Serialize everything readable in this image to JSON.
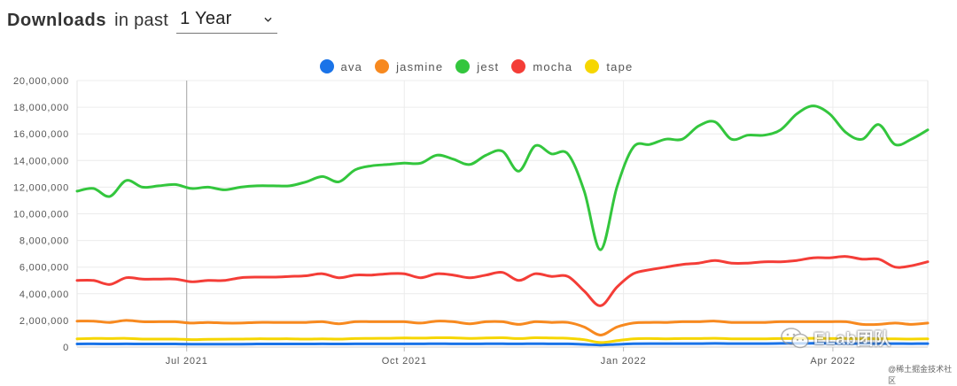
{
  "header": {
    "title_bold": "Downloads",
    "title_light": "in past",
    "range_select_value": "1 Year"
  },
  "watermark": {
    "text": "ELab团队",
    "site": "@稀土掘金技术社区"
  },
  "chart_data": {
    "type": "line",
    "title": "",
    "xlabel": "",
    "ylabel": "",
    "ylim": [
      0,
      20000000
    ],
    "xlim": [
      0,
      52
    ],
    "x": [
      0,
      1,
      2,
      3,
      4,
      5,
      6,
      7,
      8,
      9,
      10,
      11,
      12,
      13,
      14,
      15,
      16,
      17,
      18,
      19,
      20,
      21,
      22,
      23,
      24,
      25,
      26,
      27,
      28,
      29,
      30,
      31,
      32,
      33,
      34,
      35,
      36,
      37,
      38,
      39,
      40,
      41,
      42,
      43,
      44,
      45,
      46,
      47,
      48,
      49,
      50,
      51,
      52
    ],
    "x_ticks": [
      {
        "x": 6.7,
        "label": "Jul 2021"
      },
      {
        "x": 20.0,
        "label": "Oct 2021"
      },
      {
        "x": 33.4,
        "label": "Jan 2022"
      },
      {
        "x": 46.2,
        "label": "Apr 2022"
      }
    ],
    "y_ticks": [
      {
        "value": 0,
        "label": "0"
      },
      {
        "value": 2000000,
        "label": "2,000,000"
      },
      {
        "value": 4000000,
        "label": "4,000,000"
      },
      {
        "value": 6000000,
        "label": "6,000,000"
      },
      {
        "value": 8000000,
        "label": "8,000,000"
      },
      {
        "value": 10000000,
        "label": "10,000,000"
      },
      {
        "value": 12000000,
        "label": "12,000,000"
      },
      {
        "value": 14000000,
        "label": "14,000,000"
      },
      {
        "value": 16000000,
        "label": "16,000,000"
      },
      {
        "value": 18000000,
        "label": "18,000,000"
      },
      {
        "value": 20000000,
        "label": "20,000,000"
      }
    ],
    "grid": true,
    "legend_position": "top-center",
    "series": [
      {
        "name": "jest",
        "color": "#33c63d",
        "values": [
          11700000,
          11900000,
          11300000,
          12500000,
          12000000,
          12100000,
          12200000,
          11900000,
          12000000,
          11800000,
          12000000,
          12100000,
          12100000,
          12100000,
          12400000,
          12800000,
          12400000,
          13300000,
          13600000,
          13700000,
          13800000,
          13800000,
          14400000,
          14100000,
          13700000,
          14400000,
          14700000,
          13200000,
          15100000,
          14500000,
          14500000,
          11700000,
          7300000,
          12000000,
          15000000,
          15200000,
          15600000,
          15600000,
          16600000,
          16900000,
          15600000,
          15900000,
          15900000,
          16300000,
          17500000,
          18100000,
          17500000,
          16100000,
          15600000,
          16700000,
          15200000,
          15600000,
          16300000
        ]
      },
      {
        "name": "mocha",
        "color": "#f43d37",
        "values": [
          5000000,
          5000000,
          4700000,
          5200000,
          5100000,
          5100000,
          5100000,
          4900000,
          5000000,
          5000000,
          5200000,
          5250000,
          5250000,
          5300000,
          5350000,
          5500000,
          5200000,
          5400000,
          5400000,
          5500000,
          5500000,
          5200000,
          5500000,
          5400000,
          5200000,
          5400000,
          5600000,
          5000000,
          5500000,
          5300000,
          5300000,
          4200000,
          3100000,
          4500000,
          5500000,
          5800000,
          6000000,
          6200000,
          6300000,
          6500000,
          6300000,
          6300000,
          6400000,
          6400000,
          6500000,
          6700000,
          6700000,
          6800000,
          6600000,
          6600000,
          6000000,
          6100000,
          6400000
        ]
      },
      {
        "name": "jasmine",
        "color": "#f7891f",
        "values": [
          1950000,
          1950000,
          1850000,
          2000000,
          1900000,
          1900000,
          1900000,
          1800000,
          1850000,
          1800000,
          1800000,
          1850000,
          1850000,
          1850000,
          1850000,
          1900000,
          1750000,
          1900000,
          1900000,
          1900000,
          1900000,
          1800000,
          1950000,
          1900000,
          1750000,
          1900000,
          1900000,
          1700000,
          1900000,
          1850000,
          1850000,
          1500000,
          900000,
          1500000,
          1800000,
          1850000,
          1850000,
          1900000,
          1900000,
          1950000,
          1850000,
          1850000,
          1850000,
          1900000,
          1900000,
          1900000,
          1900000,
          1900000,
          1700000,
          1700000,
          1800000,
          1700000,
          1800000
        ]
      },
      {
        "name": "tape",
        "color": "#f6d600",
        "values": [
          620000,
          650000,
          640000,
          650000,
          600000,
          600000,
          600000,
          560000,
          580000,
          590000,
          600000,
          620000,
          610000,
          620000,
          600000,
          620000,
          600000,
          640000,
          650000,
          660000,
          680000,
          670000,
          700000,
          690000,
          650000,
          680000,
          700000,
          640000,
          700000,
          680000,
          660000,
          550000,
          340000,
          480000,
          620000,
          640000,
          620000,
          640000,
          640000,
          660000,
          620000,
          620000,
          620000,
          640000,
          640000,
          660000,
          640000,
          640000,
          620000,
          620000,
          610000,
          600000,
          620000
        ]
      },
      {
        "name": "ava",
        "color": "#1a73e8",
        "values": [
          230000,
          240000,
          230000,
          240000,
          230000,
          230000,
          230000,
          220000,
          220000,
          220000,
          220000,
          230000,
          230000,
          230000,
          230000,
          240000,
          230000,
          240000,
          240000,
          240000,
          240000,
          240000,
          250000,
          240000,
          240000,
          250000,
          250000,
          240000,
          250000,
          240000,
          240000,
          200000,
          150000,
          200000,
          250000,
          260000,
          260000,
          260000,
          260000,
          270000,
          260000,
          260000,
          260000,
          270000,
          270000,
          280000,
          280000,
          270000,
          260000,
          260000,
          260000,
          250000,
          260000
        ]
      }
    ],
    "legend_order": [
      "ava",
      "jasmine",
      "jest",
      "mocha",
      "tape"
    ]
  }
}
